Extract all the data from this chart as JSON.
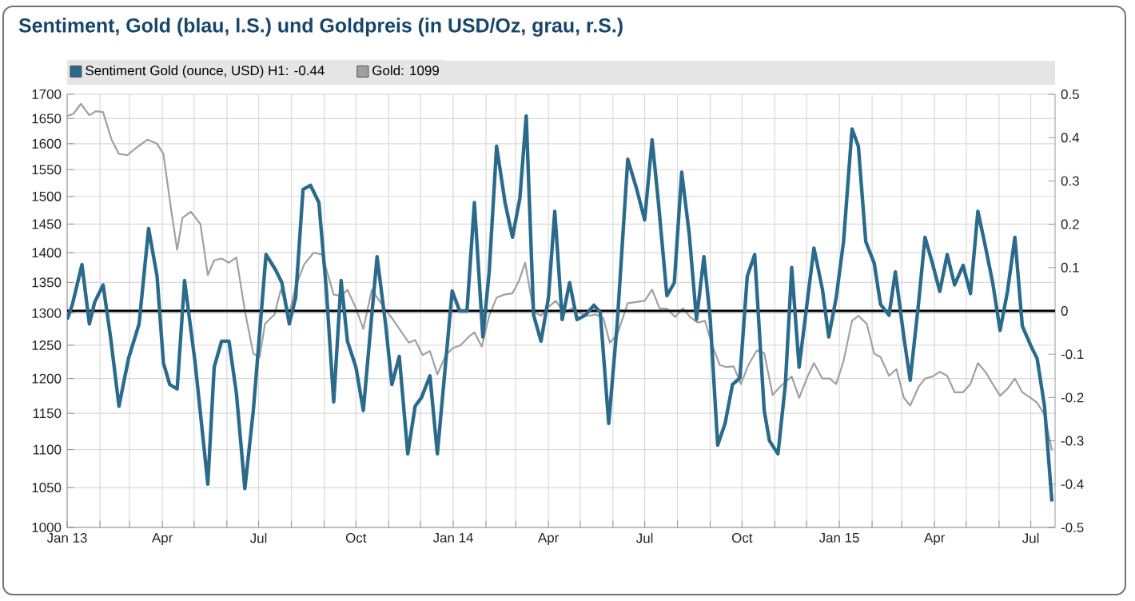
{
  "chart_data": {
    "type": "line",
    "title": "Sentiment, Gold (blau, l.S.) und Goldpreis (in USD/Oz, grau, r.S.)",
    "xlim": [
      "2013-01-01",
      "2015-07-24"
    ],
    "xticks": [
      {
        "value": "2013-01-01",
        "label": "Jan 13"
      },
      {
        "value": "2013-02-01",
        "label": null
      },
      {
        "value": "2013-03-01",
        "label": null
      },
      {
        "value": "2013-04-01",
        "label": "Apr"
      },
      {
        "value": "2013-05-01",
        "label": null
      },
      {
        "value": "2013-06-01",
        "label": null
      },
      {
        "value": "2013-07-01",
        "label": "Jul"
      },
      {
        "value": "2013-08-01",
        "label": null
      },
      {
        "value": "2013-09-01",
        "label": null
      },
      {
        "value": "2013-10-01",
        "label": "Oct"
      },
      {
        "value": "2013-11-01",
        "label": null
      },
      {
        "value": "2013-12-01",
        "label": null
      },
      {
        "value": "2014-01-01",
        "label": "Jan 14"
      },
      {
        "value": "2014-02-01",
        "label": null
      },
      {
        "value": "2014-03-01",
        "label": null
      },
      {
        "value": "2014-04-01",
        "label": "Apr"
      },
      {
        "value": "2014-05-01",
        "label": null
      },
      {
        "value": "2014-06-01",
        "label": null
      },
      {
        "value": "2014-07-01",
        "label": "Jul"
      },
      {
        "value": "2014-08-01",
        "label": null
      },
      {
        "value": "2014-09-01",
        "label": null
      },
      {
        "value": "2014-10-01",
        "label": "Oct"
      },
      {
        "value": "2014-11-01",
        "label": null
      },
      {
        "value": "2014-12-01",
        "label": null
      },
      {
        "value": "2015-01-01",
        "label": "Jan 15"
      },
      {
        "value": "2015-02-01",
        "label": null
      },
      {
        "value": "2015-03-01",
        "label": null
      },
      {
        "value": "2015-04-01",
        "label": "Apr"
      },
      {
        "value": "2015-05-01",
        "label": null
      },
      {
        "value": "2015-06-01",
        "label": null
      },
      {
        "value": "2015-07-01",
        "label": "Jul"
      }
    ],
    "ylim": [
      1000,
      1700
    ],
    "yticks": [
      1000,
      1050,
      1100,
      1150,
      1200,
      1250,
      1300,
      1350,
      1400,
      1450,
      1500,
      1550,
      1600,
      1650,
      1700
    ],
    "log": "y",
    "y2lim": [
      -0.5,
      0.5
    ],
    "y2ticks": [
      -0.5,
      -0.4,
      -0.3,
      -0.2,
      -0.1,
      0,
      0.1,
      0.2,
      0.3,
      0.4,
      0.5
    ],
    "grid": true,
    "legend": "top",
    "marker": "none",
    "ref_lines": [
      {
        "axis": "y2",
        "value": 0,
        "color": "#000000"
      }
    ],
    "series": [
      {
        "name": "Sentiment Gold (ounce, USD) H1: -0.44",
        "color": "#2a6a8c",
        "axis": "y2",
        "x": [
          "2013-01-01",
          "2013-01-06",
          "2013-01-15",
          "2013-01-22",
          "2013-01-27",
          "2013-02-04",
          "2013-02-11",
          "2013-02-19",
          "2013-02-28",
          "2013-03-10",
          "2013-03-19",
          "2013-03-27",
          "2013-04-02",
          "2013-04-08",
          "2013-04-15",
          "2013-04-22",
          "2013-05-02",
          "2013-05-14",
          "2013-05-20",
          "2013-05-27",
          "2013-06-03",
          "2013-06-10",
          "2013-06-18",
          "2013-06-26",
          "2013-07-08",
          "2013-07-17",
          "2013-07-23",
          "2013-07-30",
          "2013-08-05",
          "2013-08-12",
          "2013-08-19",
          "2013-08-27",
          "2013-09-03",
          "2013-09-10",
          "2013-09-17",
          "2013-09-23",
          "2013-10-01",
          "2013-10-08",
          "2013-10-16",
          "2013-10-21",
          "2013-10-29",
          "2013-11-04",
          "2013-11-11",
          "2013-11-19",
          "2013-11-26",
          "2013-12-02",
          "2013-12-10",
          "2013-12-17",
          "2013-12-31",
          "2014-01-07",
          "2014-01-14",
          "2014-01-21",
          "2014-01-29",
          "2014-02-04",
          "2014-02-11",
          "2014-02-19",
          "2014-02-26",
          "2014-03-05",
          "2014-03-11",
          "2014-03-18",
          "2014-03-25",
          "2014-04-01",
          "2014-04-07",
          "2014-04-14",
          "2014-04-21",
          "2014-04-28",
          "2014-05-06",
          "2014-05-14",
          "2014-05-20",
          "2014-05-28",
          "2014-06-05",
          "2014-06-15",
          "2014-06-23",
          "2014-07-01",
          "2014-07-08",
          "2014-07-14",
          "2014-07-22",
          "2014-07-29",
          "2014-08-05",
          "2014-08-12",
          "2014-08-19",
          "2014-08-26",
          "2014-09-01",
          "2014-09-08",
          "2014-09-15",
          "2014-09-22",
          "2014-09-29",
          "2014-10-06",
          "2014-10-13",
          "2014-10-22",
          "2014-10-27",
          "2014-11-04",
          "2014-11-11",
          "2014-11-17",
          "2014-11-24",
          "2014-12-08",
          "2014-12-16",
          "2014-12-22",
          "2014-12-29",
          "2015-01-05",
          "2015-01-13",
          "2015-01-19",
          "2015-01-26",
          "2015-02-03",
          "2015-02-09",
          "2015-02-17",
          "2015-02-23",
          "2015-03-03",
          "2015-03-09",
          "2015-03-17",
          "2015-03-23",
          "2015-03-30",
          "2015-04-06",
          "2015-04-13",
          "2015-04-20",
          "2015-04-28",
          "2015-05-05",
          "2015-05-12",
          "2015-05-19",
          "2015-05-26",
          "2015-06-02",
          "2015-06-09",
          "2015-06-16",
          "2015-06-23",
          "2015-07-01",
          "2015-07-07",
          "2015-07-14",
          "2015-07-21"
        ],
        "values": [
          -0.02,
          0.015,
          0.107,
          -0.03,
          0.02,
          0.06,
          -0.06,
          -0.22,
          -0.11,
          -0.03,
          0.19,
          0.08,
          -0.12,
          -0.17,
          -0.18,
          0.07,
          -0.12,
          -0.4,
          -0.13,
          -0.07,
          -0.07,
          -0.19,
          -0.41,
          -0.23,
          0.13,
          0.095,
          0.065,
          -0.03,
          0.03,
          0.28,
          0.29,
          0.25,
          0.05,
          -0.21,
          0.07,
          -0.07,
          -0.13,
          -0.23,
          -0.01,
          0.125,
          -0.03,
          -0.17,
          -0.105,
          -0.33,
          -0.22,
          -0.2,
          -0.15,
          -0.33,
          0.046,
          0.0,
          0.0,
          0.25,
          -0.06,
          0.09,
          0.38,
          0.25,
          0.17,
          0.26,
          0.45,
          -0.01,
          -0.07,
          0.03,
          0.23,
          -0.02,
          0.065,
          -0.02,
          -0.01,
          0.013,
          -0.003,
          -0.26,
          -0.03,
          0.35,
          0.285,
          0.21,
          0.395,
          0.25,
          0.035,
          0.065,
          0.32,
          0.18,
          -0.02,
          0.125,
          -0.02,
          -0.31,
          -0.26,
          -0.17,
          -0.155,
          0.08,
          0.13,
          -0.23,
          -0.3,
          -0.33,
          -0.17,
          0.1,
          -0.13,
          0.145,
          0.05,
          -0.06,
          0.03,
          0.16,
          0.42,
          0.38,
          0.16,
          0.11,
          0.015,
          -0.01,
          0.09,
          -0.06,
          -0.16,
          0.02,
          0.17,
          0.11,
          0.045,
          0.13,
          0.06,
          0.105,
          0.04,
          0.23,
          0.15,
          0.065,
          -0.045,
          0.045,
          0.17,
          -0.035,
          -0.08,
          -0.11,
          -0.22,
          -0.44
        ]
      },
      {
        "name": "Gold: 1099",
        "color": "#a0a0a0",
        "axis": "y",
        "x": [
          "2013-01-01",
          "2013-01-07",
          "2013-01-14",
          "2013-01-22",
          "2013-01-28",
          "2013-02-04",
          "2013-02-12",
          "2013-02-19",
          "2013-02-27",
          "2013-03-06",
          "2013-03-18",
          "2013-03-27",
          "2013-04-02",
          "2013-04-09",
          "2013-04-15",
          "2013-04-20",
          "2013-04-28",
          "2013-05-07",
          "2013-05-14",
          "2013-05-20",
          "2013-05-27",
          "2013-06-03",
          "2013-06-10",
          "2013-06-18",
          "2013-06-26",
          "2013-07-02",
          "2013-07-07",
          "2013-07-16",
          "2013-07-22",
          "2013-07-30",
          "2013-08-05",
          "2013-08-13",
          "2013-08-22",
          "2013-08-30",
          "2013-09-10",
          "2013-09-17",
          "2013-09-23",
          "2013-10-01",
          "2013-10-08",
          "2013-10-16",
          "2013-10-28",
          "2013-11-05",
          "2013-11-20",
          "2013-11-26",
          "2013-12-03",
          "2013-12-10",
          "2013-12-17",
          "2013-12-25",
          "2014-01-01",
          "2014-01-08",
          "2014-01-15",
          "2014-01-21",
          "2014-01-28",
          "2014-02-04",
          "2014-02-11",
          "2014-02-18",
          "2014-02-26",
          "2014-03-04",
          "2014-03-10",
          "2014-03-18",
          "2014-03-25",
          "2014-04-01",
          "2014-04-08",
          "2014-04-16",
          "2014-04-23",
          "2014-05-01",
          "2014-05-09",
          "2014-05-16",
          "2014-05-23",
          "2014-05-29",
          "2014-06-05",
          "2014-06-15",
          "2014-06-23",
          "2014-07-01",
          "2014-07-08",
          "2014-07-15",
          "2014-07-22",
          "2014-07-30",
          "2014-08-06",
          "2014-08-13",
          "2014-08-20",
          "2014-08-27",
          "2014-09-02",
          "2014-09-10",
          "2014-09-16",
          "2014-09-23",
          "2014-09-30",
          "2014-10-07",
          "2014-10-15",
          "2014-10-22",
          "2014-10-30",
          "2014-11-06",
          "2014-11-17",
          "2014-11-24",
          "2014-12-02",
          "2014-12-08",
          "2014-12-16",
          "2014-12-23",
          "2014-12-29",
          "2015-01-05",
          "2015-01-13",
          "2015-01-19",
          "2015-01-27",
          "2015-02-03",
          "2015-02-09",
          "2015-02-17",
          "2015-02-24",
          "2015-03-03",
          "2015-03-09",
          "2015-03-17",
          "2015-03-23",
          "2015-03-30",
          "2015-04-06",
          "2015-04-13",
          "2015-04-20",
          "2015-04-28",
          "2015-05-05",
          "2015-05-12",
          "2015-05-19",
          "2015-05-26",
          "2015-06-02",
          "2015-06-09",
          "2015-06-16",
          "2015-06-23",
          "2015-07-01",
          "2015-07-07",
          "2015-07-14",
          "2015-07-21"
        ],
        "values": [
          1655,
          1660,
          1680,
          1657,
          1665,
          1663,
          1608,
          1580,
          1578,
          1590,
          1608,
          1600,
          1580,
          1480,
          1405,
          1461,
          1472,
          1450,
          1362,
          1387,
          1390,
          1383,
          1392,
          1304,
          1237,
          1232,
          1283,
          1298,
          1338,
          1300,
          1343,
          1380,
          1400,
          1397,
          1330,
          1328,
          1338,
          1308,
          1275,
          1338,
          1308,
          1290,
          1254,
          1258,
          1235,
          1241,
          1206,
          1235,
          1246,
          1250,
          1262,
          1270,
          1248,
          1296,
          1325,
          1330,
          1332,
          1352,
          1383,
          1302,
          1296,
          1310,
          1320,
          1300,
          1308,
          1300,
          1296,
          1298,
          1292,
          1254,
          1266,
          1316,
          1318,
          1320,
          1338,
          1308,
          1307,
          1294,
          1308,
          1294,
          1285,
          1288,
          1254,
          1220,
          1217,
          1218,
          1192,
          1220,
          1242,
          1238,
          1176,
          1188,
          1203,
          1172,
          1203,
          1223,
          1200,
          1200,
          1192,
          1226,
          1288,
          1296,
          1283,
          1237,
          1232,
          1204,
          1214,
          1172,
          1161,
          1188,
          1200,
          1203,
          1210,
          1204,
          1180,
          1180,
          1192,
          1223,
          1210,
          1192,
          1175,
          1185,
          1200,
          1180,
          1172,
          1165,
          1148,
          1099
        ]
      }
    ]
  }
}
